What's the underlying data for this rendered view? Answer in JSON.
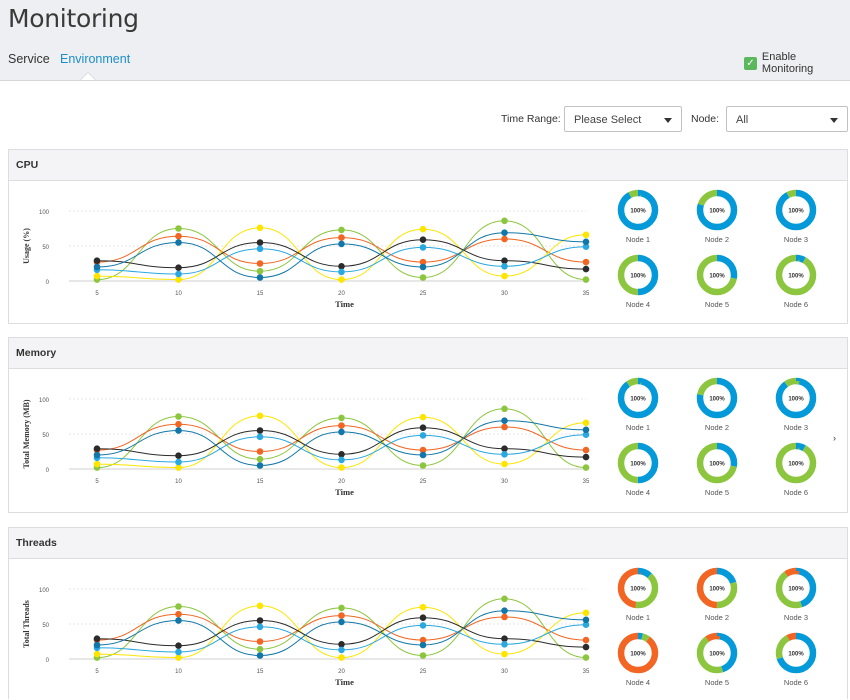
{
  "app": {
    "title": "Monitoring"
  },
  "tabs": [
    {
      "label": "Service",
      "active": false
    },
    {
      "label": "Environment",
      "active": true
    }
  ],
  "enable_monitoring": {
    "label": "Enable Monitoring",
    "checked": true
  },
  "filters": {
    "time_range_label": "Time Range:",
    "time_range_value": "Please Select",
    "node_label": "Node:",
    "node_value": "All"
  },
  "colors": {
    "green": "#8cc63e",
    "orange": "#f26522",
    "yellow": "#fde500",
    "dark": "#2b2b2b",
    "blue": "#1a9bd7",
    "donut_blue": "#049ad9",
    "donut_green": "#8cc63e",
    "donut_orange": "#f26522"
  },
  "panels": [
    {
      "title": "CPU",
      "chart_data": {
        "type": "line",
        "xlabel": "Time",
        "ylabel": "Usage (%)",
        "x": [
          5,
          10,
          15,
          20,
          25,
          30,
          35
        ],
        "ylim": [
          0,
          100
        ],
        "yticks": [
          0,
          50,
          100
        ],
        "series": [
          {
            "color": "green",
            "values": [
              2,
              75,
              14,
              73,
              5,
              86,
              2
            ]
          },
          {
            "color": "orange",
            "values": [
              27,
              64,
              25,
              62,
              27,
              60,
              27
            ]
          },
          {
            "color": "yellow",
            "values": [
              7,
              2,
              76,
              2,
              74,
              7,
              66
            ]
          },
          {
            "color": "dark",
            "values": [
              29,
              19,
              55,
              21,
              59,
              29,
              17
            ]
          },
          {
            "color": "blue",
            "values": [
              16,
              10,
              46,
              13,
              48,
              21,
              49
            ]
          },
          {
            "color": "blue2",
            "values": [
              20,
              55,
              5,
              53,
              20,
              69,
              56
            ]
          }
        ]
      },
      "nodes": [
        {
          "name": "Node 1",
          "label": "100%",
          "segments": [
            {
              "color": "donut_blue",
              "value": 92
            },
            {
              "color": "donut_green",
              "value": 8
            }
          ]
        },
        {
          "name": "Node 2",
          "label": "100%",
          "segments": [
            {
              "color": "donut_blue",
              "value": 80
            },
            {
              "color": "donut_green",
              "value": 20
            }
          ]
        },
        {
          "name": "Node 3",
          "label": "100%",
          "segments": [
            {
              "color": "donut_blue",
              "value": 92
            },
            {
              "color": "donut_green",
              "value": 8
            }
          ]
        },
        {
          "name": "Node 4",
          "label": "100%",
          "segments": [
            {
              "color": "donut_blue",
              "value": 50
            },
            {
              "color": "donut_green",
              "value": 50
            }
          ]
        },
        {
          "name": "Node 5",
          "label": "100%",
          "segments": [
            {
              "color": "donut_blue",
              "value": 28
            },
            {
              "color": "donut_green",
              "value": 72
            }
          ]
        },
        {
          "name": "Node 6",
          "label": "100%",
          "segments": [
            {
              "color": "donut_blue",
              "value": 8
            },
            {
              "color": "donut_green",
              "value": 92
            }
          ]
        }
      ]
    },
    {
      "title": "Memory",
      "chart_data": {
        "type": "line",
        "xlabel": "Time",
        "ylabel": "Total Memory (MB)",
        "x": [
          5,
          10,
          15,
          20,
          25,
          30,
          35
        ],
        "ylim": [
          0,
          100
        ],
        "yticks": [
          0,
          50,
          100
        ],
        "series": [
          {
            "color": "green",
            "values": [
              2,
              75,
              14,
              73,
              5,
              86,
              2
            ]
          },
          {
            "color": "orange",
            "values": [
              27,
              64,
              25,
              62,
              27,
              60,
              27
            ]
          },
          {
            "color": "yellow",
            "values": [
              7,
              2,
              76,
              2,
              74,
              7,
              66
            ]
          },
          {
            "color": "dark",
            "values": [
              29,
              19,
              55,
              21,
              59,
              29,
              17
            ]
          },
          {
            "color": "blue",
            "values": [
              16,
              10,
              46,
              13,
              48,
              21,
              49
            ]
          },
          {
            "color": "blue2",
            "values": [
              20,
              55,
              5,
              53,
              20,
              69,
              56
            ]
          }
        ]
      },
      "nodes": [
        {
          "name": "Node 1",
          "label": "100%",
          "segments": [
            {
              "color": "donut_blue",
              "value": 90
            },
            {
              "color": "donut_green",
              "value": 10
            }
          ]
        },
        {
          "name": "Node 2",
          "label": "100%",
          "segments": [
            {
              "color": "donut_blue",
              "value": 78
            },
            {
              "color": "donut_green",
              "value": 22
            }
          ]
        },
        {
          "name": "Node 3",
          "label": "100%",
          "segments": [
            {
              "color": "donut_blue",
              "value": 90
            },
            {
              "color": "donut_green",
              "value": 10
            }
          ]
        },
        {
          "name": "Node 4",
          "label": "100%",
          "segments": [
            {
              "color": "donut_blue",
              "value": 50
            },
            {
              "color": "donut_green",
              "value": 50
            }
          ]
        },
        {
          "name": "Node 5",
          "label": "100%",
          "segments": [
            {
              "color": "donut_blue",
              "value": 28
            },
            {
              "color": "donut_green",
              "value": 72
            }
          ]
        },
        {
          "name": "Node 6",
          "label": "100%",
          "segments": [
            {
              "color": "donut_blue",
              "value": 8
            },
            {
              "color": "donut_green",
              "value": 92
            }
          ]
        }
      ]
    },
    {
      "title": "Threads",
      "chart_data": {
        "type": "line",
        "xlabel": "Time",
        "ylabel": "Total Threads",
        "x": [
          5,
          10,
          15,
          20,
          25,
          30,
          35
        ],
        "ylim": [
          0,
          100
        ],
        "yticks": [
          0,
          50,
          100
        ],
        "series": [
          {
            "color": "green",
            "values": [
              2,
              75,
              14,
              73,
              5,
              86,
              2
            ]
          },
          {
            "color": "orange",
            "values": [
              27,
              64,
              25,
              62,
              27,
              60,
              27
            ]
          },
          {
            "color": "yellow",
            "values": [
              7,
              2,
              76,
              2,
              74,
              7,
              66
            ]
          },
          {
            "color": "dark",
            "values": [
              29,
              19,
              55,
              21,
              59,
              29,
              17
            ]
          },
          {
            "color": "blue",
            "values": [
              16,
              10,
              46,
              13,
              48,
              21,
              49
            ]
          },
          {
            "color": "blue2",
            "values": [
              20,
              55,
              5,
              53,
              20,
              69,
              56
            ]
          }
        ]
      },
      "nodes": [
        {
          "name": "Node 1",
          "label": "100%",
          "segments": [
            {
              "color": "donut_blue",
              "value": 12
            },
            {
              "color": "donut_green",
              "value": 40
            },
            {
              "color": "donut_orange",
              "value": 48
            }
          ]
        },
        {
          "name": "Node 2",
          "label": "100%",
          "segments": [
            {
              "color": "donut_blue",
              "value": 20
            },
            {
              "color": "donut_green",
              "value": 30
            },
            {
              "color": "donut_orange",
              "value": 50
            }
          ]
        },
        {
          "name": "Node 3",
          "label": "100%",
          "segments": [
            {
              "color": "donut_blue",
              "value": 45
            },
            {
              "color": "donut_green",
              "value": 45
            },
            {
              "color": "donut_orange",
              "value": 10
            }
          ]
        },
        {
          "name": "Node 4",
          "label": "100%",
          "segments": [
            {
              "color": "donut_blue",
              "value": 4
            },
            {
              "color": "donut_green",
              "value": 6
            },
            {
              "color": "donut_orange",
              "value": 90
            }
          ]
        },
        {
          "name": "Node 5",
          "label": "100%",
          "segments": [
            {
              "color": "donut_blue",
              "value": 45
            },
            {
              "color": "donut_green",
              "value": 45
            },
            {
              "color": "donut_orange",
              "value": 10
            }
          ]
        },
        {
          "name": "Node 6",
          "label": "100%",
          "segments": [
            {
              "color": "donut_blue",
              "value": 70
            },
            {
              "color": "donut_green",
              "value": 22
            },
            {
              "color": "donut_orange",
              "value": 8
            }
          ]
        }
      ]
    }
  ]
}
